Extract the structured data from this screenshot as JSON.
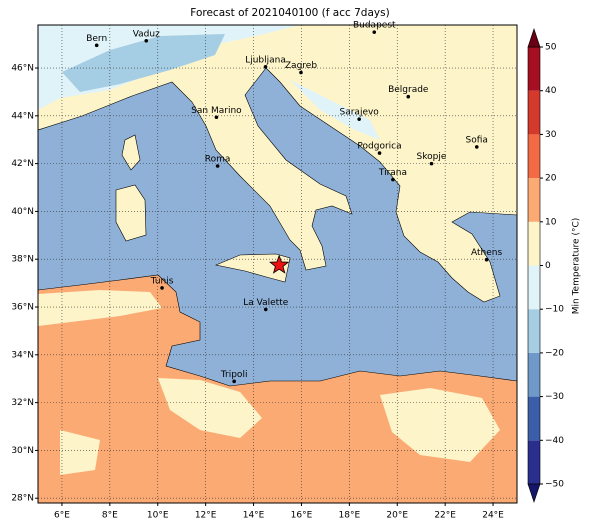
{
  "title": "Forecast of 2021040100 (f acc 7days)",
  "map": {
    "xlim": [
      5,
      25
    ],
    "ylim": [
      27.8,
      47.8
    ],
    "xticks": [
      {
        "value": 6,
        "label": "6°E"
      },
      {
        "value": 8,
        "label": "8°E"
      },
      {
        "value": 10,
        "label": "10°E"
      },
      {
        "value": 12,
        "label": "12°E"
      },
      {
        "value": 14,
        "label": "14°E"
      },
      {
        "value": 16,
        "label": "16°E"
      },
      {
        "value": 18,
        "label": "18°E"
      },
      {
        "value": 20,
        "label": "20°E"
      },
      {
        "value": 22,
        "label": "22°E"
      },
      {
        "value": 24,
        "label": "24°E"
      }
    ],
    "yticks": [
      {
        "value": 28,
        "label": "28°N"
      },
      {
        "value": 30,
        "label": "30°N"
      },
      {
        "value": 32,
        "label": "32°N"
      },
      {
        "value": 34,
        "label": "34°N"
      },
      {
        "value": 36,
        "label": "36°N"
      },
      {
        "value": 38,
        "label": "38°N"
      },
      {
        "value": 40,
        "label": "40°N"
      },
      {
        "value": 42,
        "label": "42°N"
      },
      {
        "value": 44,
        "label": "44°N"
      },
      {
        "value": 46,
        "label": "46°N"
      }
    ],
    "cities": [
      {
        "name": "Bern",
        "lon": 7.45,
        "lat": 46.95
      },
      {
        "name": "Vaduz",
        "lon": 9.52,
        "lat": 47.14
      },
      {
        "name": "Budapest",
        "lon": 19.04,
        "lat": 47.5
      },
      {
        "name": "Ljubljana",
        "lon": 14.5,
        "lat": 46.05
      },
      {
        "name": "Zagreb",
        "lon": 15.98,
        "lat": 45.81
      },
      {
        "name": "Belgrade",
        "lon": 20.46,
        "lat": 44.8
      },
      {
        "name": "San Marino",
        "lon": 12.45,
        "lat": 43.94
      },
      {
        "name": "Sarajevo",
        "lon": 18.41,
        "lat": 43.86
      },
      {
        "name": "Sofia",
        "lon": 23.32,
        "lat": 42.7
      },
      {
        "name": "Podgorica",
        "lon": 19.26,
        "lat": 42.44
      },
      {
        "name": "Roma",
        "lon": 12.5,
        "lat": 41.9
      },
      {
        "name": "Skopje",
        "lon": 21.43,
        "lat": 42.0
      },
      {
        "name": "Tirana",
        "lon": 19.82,
        "lat": 41.33
      },
      {
        "name": "Athens",
        "lon": 23.73,
        "lat": 37.98
      },
      {
        "name": "Tunis",
        "lon": 10.18,
        "lat": 36.8
      },
      {
        "name": "La Valette",
        "lon": 14.51,
        "lat": 35.9
      },
      {
        "name": "Tripoli",
        "lon": 13.19,
        "lat": 32.89
      }
    ],
    "marker": {
      "lon": 15.07,
      "lat": 37.75,
      "color": "#ee1111"
    }
  },
  "colorbar": {
    "label": "Min Temperature (°C)",
    "levels": [
      -50,
      -40,
      -30,
      -20,
      -10,
      0,
      10,
      20,
      30,
      40,
      50
    ],
    "colors": [
      "#2a2f8e",
      "#3c5ea8",
      "#6f99c8",
      "#a5cde3",
      "#e0f3f8",
      "#fdf5c9",
      "#fcaa74",
      "#f36b45",
      "#d33a2b",
      "#a50f22"
    ],
    "under_color": "#15166a",
    "over_color": "#6a0015",
    "ticks": [
      {
        "value": -50,
        "label": "−50"
      },
      {
        "value": -40,
        "label": "−40"
      },
      {
        "value": -30,
        "label": "−30"
      },
      {
        "value": -20,
        "label": "−20"
      },
      {
        "value": -10,
        "label": "−10"
      },
      0,
      10,
      20,
      30,
      40,
      50
    ]
  }
}
